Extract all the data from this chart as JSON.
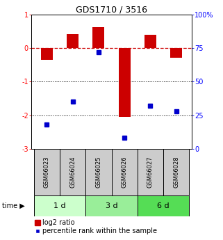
{
  "title": "GDS1710 / 3516",
  "samples": [
    "GSM66023",
    "GSM66024",
    "GSM66025",
    "GSM66026",
    "GSM66027",
    "GSM66028"
  ],
  "time_groups": [
    {
      "label": "1 d",
      "indices": [
        0,
        1
      ],
      "color": "#ccffcc"
    },
    {
      "label": "3 d",
      "indices": [
        2,
        3
      ],
      "color": "#99ee99"
    },
    {
      "label": "6 d",
      "indices": [
        4,
        5
      ],
      "color": "#55dd55"
    }
  ],
  "log2_ratio": [
    -0.35,
    0.42,
    0.62,
    -2.05,
    0.4,
    -0.28
  ],
  "percentile_rank": [
    18,
    35,
    72,
    8,
    32,
    28
  ],
  "ylim_left": [
    -3,
    1
  ],
  "ylim_right": [
    0,
    100
  ],
  "bar_color": "#cc0000",
  "dot_color": "#0000cc",
  "bar_width": 0.45,
  "zero_line_color": "#cc0000",
  "legend_bar_label": "log2 ratio",
  "legend_dot_label": "percentile rank within the sample",
  "sample_box_color": "#cccccc",
  "title_fontsize": 9,
  "tick_fontsize": 7,
  "sample_fontsize": 6,
  "time_fontsize": 8,
  "legend_fontsize": 7
}
